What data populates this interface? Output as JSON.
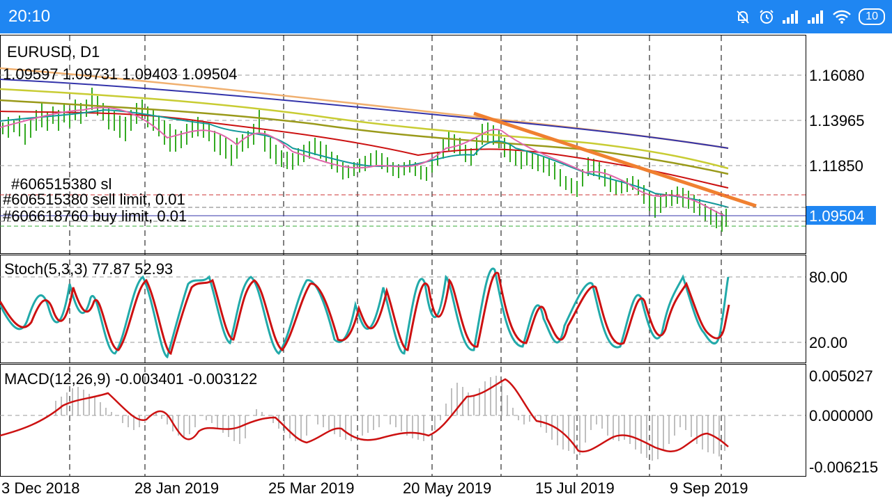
{
  "status_bar": {
    "time": "20:10",
    "battery_level": "10",
    "icons": [
      "bell-off-icon",
      "alarm-icon",
      "signal-icon",
      "signal-icon",
      "wifi-icon",
      "battery-icon"
    ]
  },
  "chart": {
    "symbol_label": "EURUSD, D1",
    "ohlc_label": "1.09597 1.09731 1.09403 1.09504",
    "orders": {
      "sl_label": "#606515380 sl",
      "sell_limit_label": "#606515380 sell limit, 0.01",
      "buy_limit_label": "#606618760 buy limit, 0.01"
    },
    "current_price_label": "1.09504",
    "colors": {
      "accent": "#1f86f2",
      "ma_blue": "#3333aa",
      "ma_orange": "#f0b070",
      "ma_yellow": "#c8cc33",
      "ma_olive": "#9a9a1a",
      "ma_red": "#cc1111",
      "ma_teal": "#119999",
      "ma_pink": "#e066aa",
      "candles": "#33aa22",
      "trendline": "#f08030"
    }
  },
  "stoch": {
    "label": "Stoch(5,3,3) 77.87 52.93",
    "levels": [
      "80.00",
      "20.00"
    ]
  },
  "macd": {
    "label": "MACD(12,26,9) -0.003401 -0.003122",
    "levels": [
      "0.005027",
      "0.000000",
      "-0.006215"
    ]
  },
  "x_axis": {
    "labels": [
      "3 Dec 2018",
      "28 Jan 2019",
      "25 Mar 2019",
      "20 May 2019",
      "15 Jul 2019",
      "9 Sep 2019"
    ]
  },
  "chart_data": {
    "type": "line",
    "symbol": "EURUSD",
    "timeframe": "D1",
    "x_ticks": [
      "3 Dec 2018",
      "28 Jan 2019",
      "25 Mar 2019",
      "20 May 2019",
      "15 Jul 2019",
      "9 Sep 2019"
    ],
    "price_axis": [
      1.1608,
      1.13965,
      1.1185,
      1.09504
    ],
    "last_bar": {
      "open": 1.09597,
      "high": 1.09731,
      "low": 1.09403,
      "close": 1.09504
    },
    "price_series": [
      {
        "role": "price",
        "x": [
          "3 Dec 2018",
          "28 Jan 2019",
          "25 Mar 2019",
          "20 May 2019",
          "15 Jul 2019",
          "9 Sep 2019"
        ],
        "values": [
          1.136,
          1.14,
          1.127,
          1.118,
          1.123,
          1.094
        ]
      },
      {
        "role": "ma",
        "color": "#3333aa",
        "x": [
          "3 Dec 2018",
          "28 Jan 2019",
          "25 Mar 2019",
          "20 May 2019",
          "15 Jul 2019",
          "9 Sep 2019"
        ],
        "values": [
          1.155,
          1.151,
          1.146,
          1.141,
          1.136,
          1.129
        ]
      },
      {
        "role": "ma",
        "color": "#c8cc33",
        "x": [
          "3 Dec 2018",
          "28 Jan 2019",
          "25 Mar 2019",
          "20 May 2019",
          "15 Jul 2019",
          "9 Sep 2019"
        ],
        "values": [
          1.15,
          1.146,
          1.14,
          1.134,
          1.127,
          1.117
        ]
      },
      {
        "role": "ma",
        "color": "#9a9a1a",
        "x": [
          "3 Dec 2018",
          "28 Jan 2019",
          "25 Mar 2019",
          "20 May 2019",
          "15 Jul 2019",
          "9 Sep 2019"
        ],
        "values": [
          1.146,
          1.141,
          1.135,
          1.129,
          1.124,
          1.115
        ]
      },
      {
        "role": "ma",
        "color": "#cc1111",
        "x": [
          "3 Dec 2018",
          "28 Jan 2019",
          "25 Mar 2019",
          "20 May 2019",
          "15 Jul 2019",
          "9 Sep 2019"
        ],
        "values": [
          1.141,
          1.14,
          1.132,
          1.124,
          1.122,
          1.106
        ]
      }
    ],
    "stoch": {
      "levels": [
        80,
        20
      ],
      "range": [
        0,
        100
      ],
      "main": 77.87,
      "signal": 52.93
    },
    "macd": {
      "range": [
        -0.006215,
        0.005027
      ],
      "main": -0.003401,
      "signal": -0.003122
    }
  }
}
